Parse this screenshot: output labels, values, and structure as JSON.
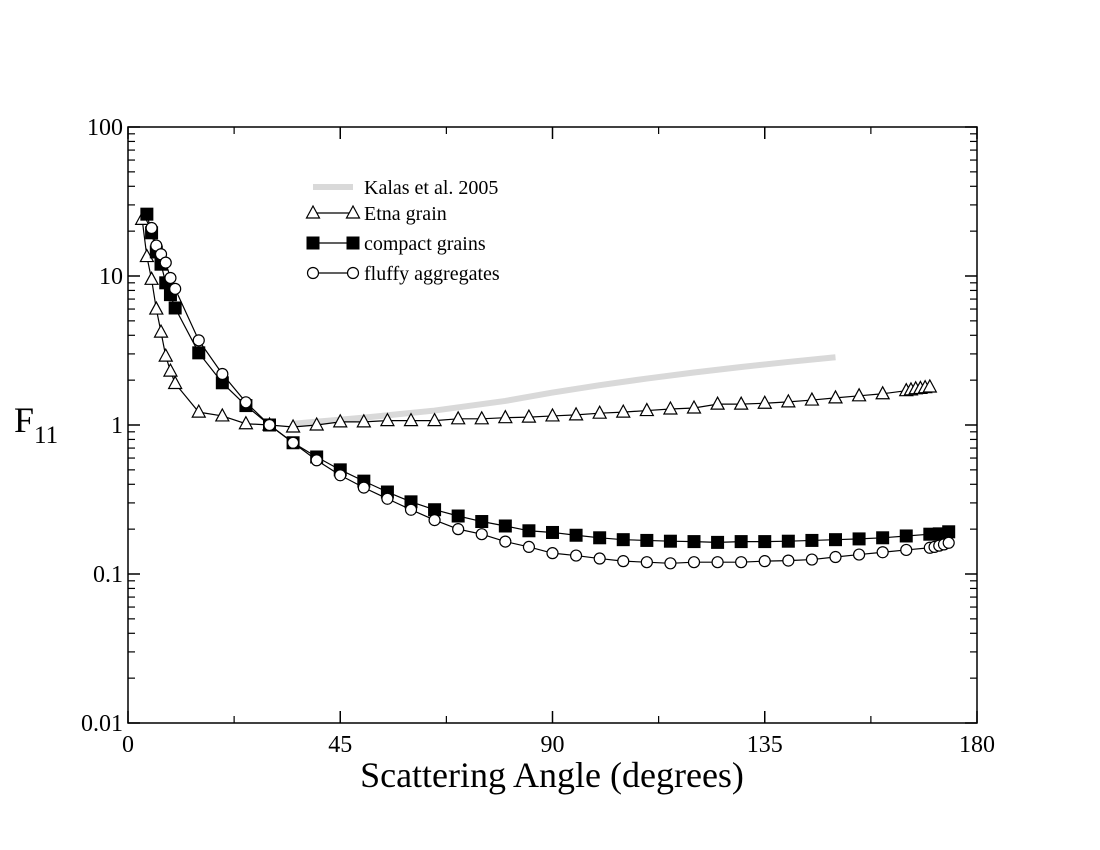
{
  "chart_data": {
    "type": "line",
    "xlabel": "Scattering Angle (degrees)",
    "ylabel": {
      "main": "F",
      "sub": "11"
    },
    "xscale": "linear",
    "yscale": "log",
    "xlim": [
      0,
      180
    ],
    "ylim": [
      0.01,
      100
    ],
    "xticks": [
      {
        "value": 0,
        "label": "0"
      },
      {
        "value": 45,
        "label": "45"
      },
      {
        "value": 90,
        "label": "90"
      },
      {
        "value": 135,
        "label": "135"
      },
      {
        "value": 180,
        "label": "180"
      }
    ],
    "yticks": [
      {
        "value": 0.01,
        "label": "0.01"
      },
      {
        "value": 0.1,
        "label": "0.1"
      },
      {
        "value": 1,
        "label": "1"
      },
      {
        "value": 10,
        "label": "10"
      },
      {
        "value": 100,
        "label": "100"
      }
    ],
    "legend_position": "top-left",
    "grid": false,
    "series": [
      {
        "name": "Kalas et al. 2005",
        "marker": "none",
        "color": "#d9d9d9",
        "x": [
          35,
          50,
          65,
          80,
          90,
          100,
          110,
          120,
          130,
          140,
          150
        ],
        "y": [
          1.02,
          1.12,
          1.25,
          1.45,
          1.65,
          1.85,
          2.05,
          2.25,
          2.45,
          2.65,
          2.85
        ]
      },
      {
        "name": "Etna grain",
        "marker": "triangle",
        "color": "#000000",
        "x": [
          3,
          4,
          5,
          6,
          7,
          8,
          9,
          10,
          15,
          20,
          25,
          30,
          35,
          40,
          45,
          50,
          55,
          60,
          65,
          70,
          75,
          80,
          85,
          90,
          95,
          100,
          105,
          110,
          115,
          120,
          125,
          130,
          135,
          140,
          145,
          150,
          155,
          160,
          165,
          166,
          167,
          168,
          169,
          170
        ],
        "y": [
          24,
          13.5,
          9.5,
          6,
          4.2,
          2.9,
          2.3,
          1.9,
          1.22,
          1.15,
          1.02,
          1.0,
          0.97,
          1.0,
          1.05,
          1.05,
          1.07,
          1.07,
          1.07,
          1.1,
          1.1,
          1.12,
          1.13,
          1.15,
          1.17,
          1.2,
          1.22,
          1.25,
          1.28,
          1.3,
          1.38,
          1.38,
          1.4,
          1.43,
          1.47,
          1.52,
          1.57,
          1.62,
          1.7,
          1.72,
          1.75,
          1.76,
          1.78,
          1.8
        ]
      },
      {
        "name": "compact grains",
        "marker": "square",
        "color": "#000000",
        "x": [
          4,
          5,
          6,
          7,
          8,
          9,
          10,
          15,
          20,
          25,
          30,
          35,
          40,
          45,
          50,
          55,
          60,
          65,
          70,
          75,
          80,
          85,
          90,
          95,
          100,
          105,
          110,
          115,
          120,
          125,
          130,
          135,
          140,
          145,
          150,
          155,
          160,
          165,
          170,
          172,
          174
        ],
        "y": [
          26,
          19.5,
          14.5,
          12,
          9,
          7.5,
          6.1,
          3.05,
          1.92,
          1.35,
          1.0,
          0.76,
          0.61,
          0.5,
          0.42,
          0.355,
          0.305,
          0.27,
          0.245,
          0.225,
          0.21,
          0.195,
          0.19,
          0.182,
          0.175,
          0.17,
          0.168,
          0.166,
          0.165,
          0.163,
          0.165,
          0.165,
          0.166,
          0.168,
          0.17,
          0.172,
          0.175,
          0.18,
          0.185,
          0.186,
          0.192
        ]
      },
      {
        "name": "fluffy aggregates",
        "marker": "circle",
        "color": "#000000",
        "x": [
          5,
          6,
          7,
          8,
          9,
          10,
          15,
          20,
          25,
          30,
          35,
          40,
          45,
          50,
          55,
          60,
          65,
          70,
          75,
          80,
          85,
          90,
          95,
          100,
          105,
          110,
          115,
          120,
          125,
          130,
          135,
          140,
          145,
          150,
          155,
          160,
          165,
          170,
          171,
          172,
          173,
          174
        ],
        "y": [
          21,
          16,
          14,
          12.3,
          9.7,
          8.2,
          3.7,
          2.2,
          1.42,
          1.0,
          0.76,
          0.58,
          0.46,
          0.38,
          0.32,
          0.27,
          0.23,
          0.2,
          0.185,
          0.165,
          0.152,
          0.138,
          0.133,
          0.127,
          0.122,
          0.12,
          0.118,
          0.12,
          0.12,
          0.12,
          0.122,
          0.123,
          0.125,
          0.13,
          0.135,
          0.14,
          0.145,
          0.15,
          0.152,
          0.155,
          0.158,
          0.162
        ]
      }
    ]
  }
}
